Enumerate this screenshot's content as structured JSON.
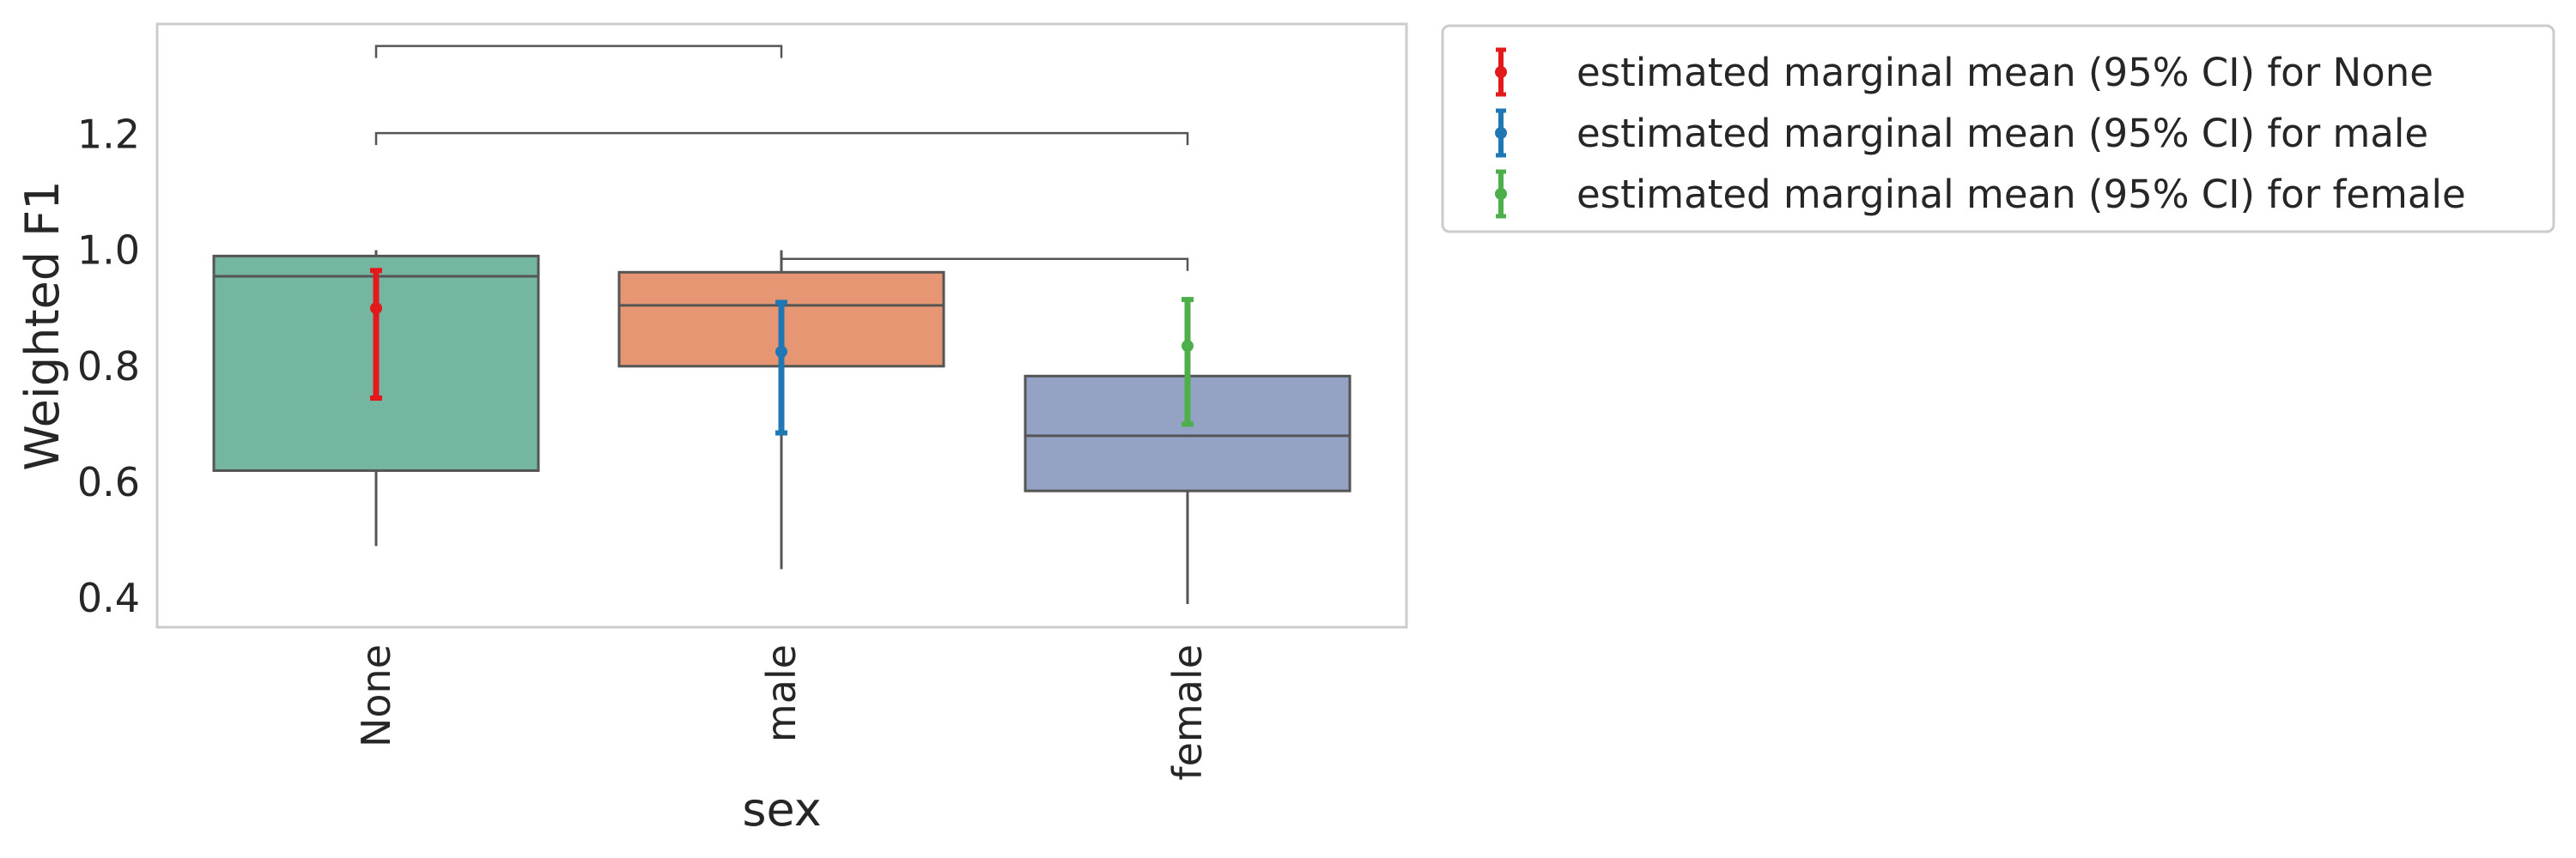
{
  "chart_data": {
    "type": "box",
    "title": "",
    "xlabel": "sex",
    "ylabel": "Weighted F1",
    "categories": [
      "None",
      "male",
      "female"
    ],
    "ylim": [
      0.35,
      1.39
    ],
    "yticks": [
      0.4,
      0.6,
      0.8,
      1.0,
      1.2
    ],
    "ytick_labels": [
      "0.4",
      "0.6",
      "0.8",
      "1.0",
      "1.2"
    ],
    "grid": false,
    "boxes": [
      {
        "category": "None",
        "whisker_low": 0.49,
        "q1": 0.62,
        "median": 0.955,
        "q3": 0.99,
        "whisker_high": 1.0,
        "color": "#74b69f"
      },
      {
        "category": "male",
        "whisker_low": 0.45,
        "q1": 0.8,
        "median": 0.905,
        "q3": 0.962,
        "whisker_high": 1.0,
        "color": "#e79674"
      },
      {
        "category": "female",
        "whisker_low": 0.39,
        "q1": 0.585,
        "median": 0.68,
        "q3": 0.783,
        "whisker_high": 0.783,
        "color": "#94a3c3"
      }
    ],
    "series": [
      {
        "name": "estimated marginal mean (95% CI) for None",
        "category": "None",
        "mean": 0.9,
        "ci_low": 0.745,
        "ci_high": 0.965,
        "color": "#e31a1c"
      },
      {
        "name": "estimated marginal mean (95% CI) for male",
        "category": "male",
        "mean": 0.825,
        "ci_low": 0.685,
        "ci_high": 0.91,
        "color": "#1f78b4"
      },
      {
        "name": "estimated marginal mean (95% CI) for female",
        "category": "female",
        "mean": 0.835,
        "ci_low": 0.7,
        "ci_high": 0.915,
        "color": "#4daf4a"
      }
    ],
    "brackets": [
      {
        "from": "None",
        "to": "male",
        "y": 1.352
      },
      {
        "from": "None",
        "to": "female",
        "y": 1.202
      },
      {
        "from": "male",
        "to": "female",
        "y": 0.985
      }
    ],
    "legend_position": "outside-right",
    "line_color": "#555555",
    "frame_color": "#cccccc"
  }
}
